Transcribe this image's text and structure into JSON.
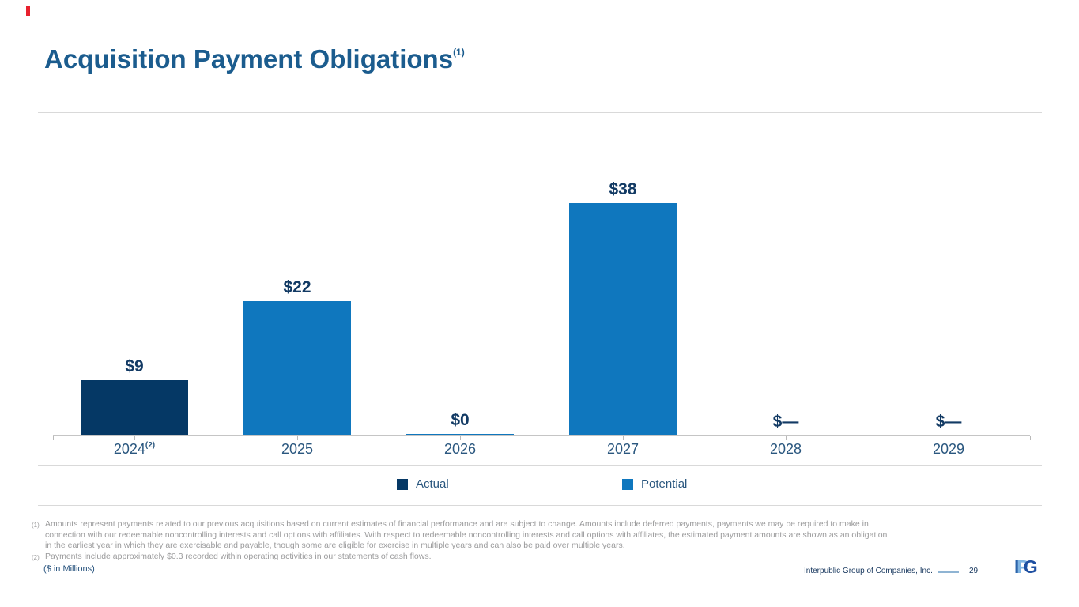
{
  "slide": {
    "title": "Acquisition Payment Obligations",
    "title_superscript": "(1)"
  },
  "chart_data": {
    "type": "bar",
    "title": "Acquisition Payment Obligations",
    "units": "$ in Millions",
    "categories": [
      "2024",
      "2025",
      "2026",
      "2027",
      "2028",
      "2029"
    ],
    "category_superscripts": [
      "(2)",
      "",
      "",
      "",
      "",
      ""
    ],
    "series": [
      {
        "name": "Actual",
        "color": "#053865",
        "values": [
          9,
          null,
          null,
          null,
          null,
          null
        ]
      },
      {
        "name": "Potential",
        "color": "#0f77be",
        "values": [
          null,
          22,
          0,
          38,
          null,
          null
        ]
      }
    ],
    "value_labels": [
      "$9",
      "$22",
      "$0",
      "$38",
      "$—",
      "$—"
    ],
    "ylim": [
      0,
      40
    ],
    "grid": false,
    "legend_position": "bottom"
  },
  "legend": {
    "items": [
      {
        "label": "Actual",
        "color": "#053865"
      },
      {
        "label": "Potential",
        "color": "#0f77be"
      }
    ]
  },
  "footnotes": [
    {
      "marker": "(1)",
      "text": "Amounts represent payments related to our previous acquisitions based on current estimates of financial performance and are subject to change. Amounts include deferred payments, payments we may be required to make in connection with our redeemable noncontrolling interests and call options with affiliates. With respect to redeemable noncontrolling interests and call options with affiliates, the estimated payment amounts are shown as an obligation in the earliest year in which they are exercisable and payable, though some are eligible for exercise in multiple years and can also be paid over multiple years."
    },
    {
      "marker": "(2)",
      "text": "Payments include approximately $0.3 recorded within operating activities in our statements of cash flows."
    }
  ],
  "footer": {
    "units_note": "($ in Millions)",
    "company": "Interpublic Group of Companies, Inc.",
    "page_number": "29",
    "logo_letters": [
      "I",
      "P",
      "G"
    ]
  },
  "colors": {
    "title_blue": "#1b5c8e",
    "value_label_navy": "#123a64",
    "axis_gray": "#c5c5c5",
    "rule_gray": "#d9d9d9",
    "footnote_gray": "#9b9b9c",
    "footer_navy": "#17375e",
    "accent_red": "#e8212e"
  }
}
